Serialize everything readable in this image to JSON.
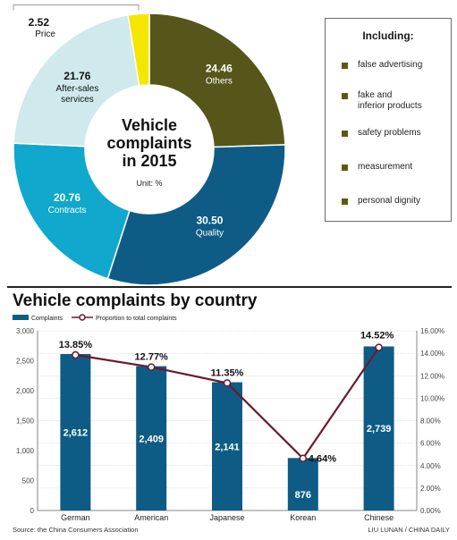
{
  "donut": {
    "center_title": [
      "Vehicle",
      "complaints",
      "in 2015"
    ],
    "unit": "Unit: %",
    "legend_title": "Including:",
    "legend_items": [
      "false advertising",
      "fake and inferior products",
      "safety problems",
      "measurement",
      "personal dignity"
    ],
    "legend_color": "#5b5a12"
  },
  "bar_chart": {
    "title": "Vehicle complaints by country",
    "legend_bar": "Complaints",
    "legend_line": "Proportion to total complaints",
    "source": "Source: the China Consumers Association",
    "credit": "LIU LUNAN / CHINA DAILY"
  },
  "chart_data": [
    {
      "type": "pie",
      "title": "Vehicle complaints in 2015",
      "unit": "Unit: %",
      "slices": [
        {
          "label": "Others",
          "value": 24.46,
          "color": "#56561a"
        },
        {
          "label": "Quality",
          "value": 30.5,
          "color": "#0e5c86"
        },
        {
          "label": "Contracts",
          "value": 20.76,
          "color": "#10a8cc"
        },
        {
          "label": "After-sales services",
          "value": 21.76,
          "color": "#cfe9ec"
        },
        {
          "label": "Price",
          "value": 2.52,
          "color": "#f5e600"
        }
      ]
    },
    {
      "type": "bar",
      "title": "Vehicle complaints by country",
      "categories": [
        "German",
        "American",
        "Japanese",
        "Korean",
        "Chinese"
      ],
      "series": [
        {
          "name": "Complaints",
          "type": "bar",
          "values": [
            2612,
            2409,
            2141,
            876,
            2739
          ],
          "labels": [
            "2,612",
            "2,409",
            "2,141",
            "876",
            "2,739"
          ],
          "color": "#0e5c86",
          "axis": "left"
        },
        {
          "name": "Proportion to total complaints",
          "type": "line",
          "values": [
            13.85,
            12.77,
            11.35,
            4.64,
            14.52
          ],
          "labels": [
            "13.85%",
            "12.77%",
            "11.35%",
            "4.64%",
            "14.52%"
          ],
          "color": "#6b1a2e",
          "axis": "right"
        }
      ],
      "y_left": {
        "range": [
          0,
          3000
        ],
        "ticks": [
          0,
          500,
          1000,
          1500,
          2000,
          2500,
          3000
        ],
        "tick_labels": [
          "0",
          "500",
          "1,000",
          "1,500",
          "2,000",
          "2,500",
          "3,000"
        ]
      },
      "y_right": {
        "range": [
          0,
          16
        ],
        "ticks": [
          0,
          2,
          4,
          6,
          8,
          10,
          12,
          14,
          16
        ],
        "tick_labels": [
          "0.00%",
          "2.00%",
          "4.00%",
          "6.00%",
          "8.00%",
          "10.00%",
          "12.00%",
          "14.00%",
          "16.00%"
        ]
      },
      "grid": true
    }
  ]
}
